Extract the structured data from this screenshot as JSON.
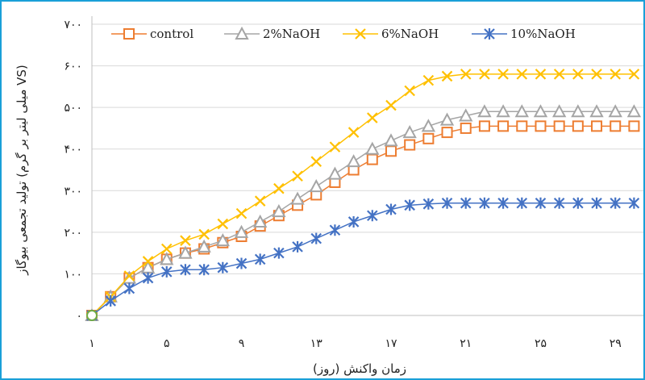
{
  "chart_data": {
    "type": "line",
    "xlabel": "زمان واکنش (روز)",
    "ylabel": "تولید تجمعی بیوگاز (میلی لیتر بر گرم VS)",
    "xlim": [
      1,
      30.5
    ],
    "ylim": [
      0,
      700
    ],
    "x_ticks": [
      1,
      5,
      9,
      13,
      17,
      21,
      25,
      29
    ],
    "x_tick_labels": [
      "۱",
      "۵",
      "۹",
      "۱۳",
      "۱۷",
      "۲۱",
      "۲۵",
      "۲۹"
    ],
    "y_ticks": [
      0,
      100,
      200,
      300,
      400,
      500,
      600,
      700
    ],
    "y_tick_labels": [
      "۰",
      "۱۰۰",
      "۲۰۰",
      "۳۰۰",
      "۴۰۰",
      "۵۰۰",
      "۶۰۰",
      "۷۰۰"
    ],
    "legend_position": "top",
    "x": [
      1,
      2,
      3,
      4,
      5,
      6,
      7,
      8,
      9,
      10,
      11,
      12,
      13,
      14,
      15,
      16,
      17,
      18,
      19,
      20,
      21,
      22,
      23,
      24,
      25,
      26,
      27,
      28,
      29,
      30,
      31
    ],
    "series": [
      {
        "name": "control",
        "color": "#ED7D31",
        "marker": "square",
        "values": [
          0,
          45,
          90,
          115,
          135,
          150,
          160,
          175,
          190,
          215,
          240,
          265,
          290,
          320,
          350,
          375,
          395,
          410,
          425,
          440,
          450,
          455,
          455,
          455,
          455,
          455,
          455,
          455,
          455,
          455,
          455
        ]
      },
      {
        "name": "2%NaOH",
        "color": "#A5A5A5",
        "marker": "triangle",
        "values": [
          0,
          45,
          90,
          115,
          135,
          150,
          165,
          180,
          200,
          225,
          250,
          280,
          310,
          340,
          370,
          400,
          420,
          440,
          455,
          470,
          480,
          490,
          490,
          490,
          490,
          490,
          490,
          490,
          490,
          490,
          490
        ]
      },
      {
        "name": "6%NaOH",
        "color": "#FFC000",
        "marker": "x",
        "values": [
          0,
          45,
          95,
          130,
          160,
          180,
          195,
          220,
          245,
          275,
          305,
          335,
          370,
          405,
          440,
          475,
          505,
          540,
          565,
          575,
          580,
          580,
          580,
          580,
          580,
          580,
          580,
          580,
          580,
          580,
          580
        ]
      },
      {
        "name": "10%NaOH",
        "color": "#4472C4",
        "marker": "star",
        "values": [
          0,
          35,
          65,
          90,
          105,
          110,
          110,
          115,
          125,
          135,
          150,
          165,
          185,
          205,
          225,
          240,
          255,
          265,
          268,
          270,
          270,
          270,
          270,
          270,
          270,
          270,
          270,
          270,
          270,
          270,
          270
        ]
      }
    ]
  }
}
